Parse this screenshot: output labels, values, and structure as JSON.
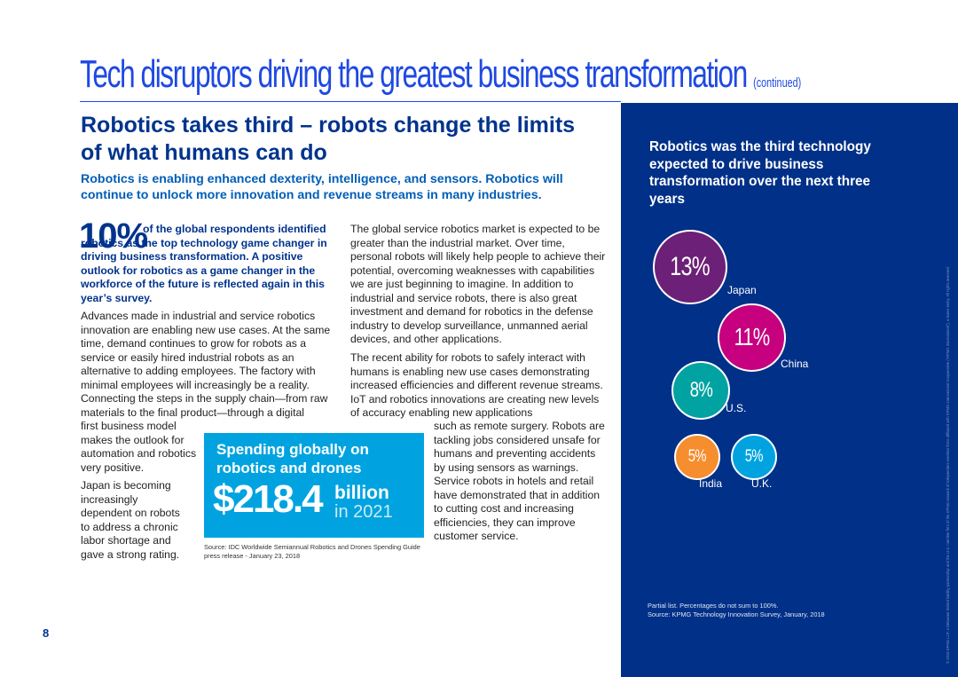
{
  "page": {
    "title": "Tech disruptors driving the greatest business transformation",
    "title_suffix": "(continued)",
    "number": "8"
  },
  "section": {
    "heading": "Robotics takes third – robots change the limits of what humans can do",
    "subheading": "Robotics is enabling enhanced dexterity, intelligence, and sensors. Robotics will continue to unlock more innovation and revenue streams in many industries."
  },
  "stat": {
    "number": "10%",
    "text": "of the global respondents identified robotics as the top technology game changer in driving business transformation. A positive outlook for robotics as a game changer in the workforce of the future is reflected again in this year’s survey."
  },
  "body": {
    "p1": "Advances made in industrial and service robotics innovation are enabling new use cases. At the same time, demand continues to grow for robots as a service or easily hired industrial robots as an alternative to adding employees. The factory with minimal employees will increasingly be a reality. Connecting the steps in the supply chain—from raw materials to the final product—through a digital",
    "p1b": "first business model makes the outlook for automation and robotics very positive.",
    "p2": "Japan is becoming increasingly dependent on robots to address a chronic labor shortage and gave a strong rating.",
    "p3": "The global service robotics market is expected to be greater than the industrial market. Over time, personal robots will likely help people to achieve their potential, overcoming weaknesses with capabilities we are just beginning to imagine. In addition to industrial and service robots, there is also great investment and demand for robotics in the defense industry to develop surveillance, unmanned aerial devices, and other applications.",
    "p4": "The recent ability for robots to safely interact with humans is enabling new use cases demonstrating increased efficiencies and different revenue streams. IoT and robotics innovations are creating new levels of accuracy enabling new applications",
    "p4b": "such as remote surgery. Robots are tackling jobs considered unsafe for humans and preventing accidents by using sensors as warnings. Service robots in hotels and retail have demonstrated that in addition to cutting cost and increasing efficiencies, they can improve customer service."
  },
  "callout": {
    "title": "Spending globally on robotics and drones",
    "amount": "$218.4",
    "unit": "billion",
    "year": "in 2021",
    "source": "Source: IDC Worldwide Semiannual Robotics and Drones Spending Guide press release - January 23, 2018"
  },
  "sidebar": {
    "title": "Robotics was the third technology expected to drive business transformation over the next three years",
    "colors": {
      "Japan": "#6d2077",
      "China": "#c6007e",
      "U.S.": "#00a3a1",
      "India": "#f68d2e",
      "U.K.": "#00a3e0"
    },
    "note": "Partial list. Percentages do not sum to 100%.",
    "source": "Source: KPMG Technology Innovation Survey, January, 2018",
    "legal": "© 2018 KPMG LLP, a Delaware limited liability partnership and the U.S. member firm of the KPMG network of independent member firms affiliated with KPMG International Cooperative (\"KPMG International\"), a Swiss entity. All rights reserved."
  },
  "chart_data": {
    "type": "bubble",
    "title": "Robotics was the third technology expected to drive business transformation over the next three years",
    "categories": [
      "Japan",
      "China",
      "U.S.",
      "India",
      "U.K."
    ],
    "values": [
      13,
      11,
      8,
      5,
      5
    ],
    "labels": [
      "13%",
      "11%",
      "8%",
      "5%",
      "5%"
    ],
    "unit": "%"
  }
}
